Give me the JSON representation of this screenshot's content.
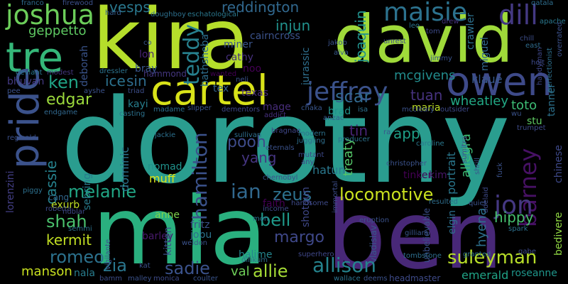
{
  "words": [
    {
      "text": "dorothy",
      "color": "#2a9d8f",
      "rotated": false
    },
    {
      "text": "kira",
      "color": "#b5de2b",
      "rotated": false
    },
    {
      "text": "david",
      "color": "#9fda3a",
      "rotated": false
    },
    {
      "text": "mia",
      "color": "#2ab07f",
      "rotated": false
    },
    {
      "text": "ben",
      "color": "#482878",
      "rotated": false
    },
    {
      "text": "tre",
      "color": "#35b779",
      "rotated": false
    },
    {
      "text": "owen",
      "color": "#3e4a89",
      "rotated": false
    },
    {
      "text": "cartel",
      "color": "#d8e219",
      "rotated": false
    },
    {
      "text": "joshua",
      "color": "#6ccd5a",
      "rotated": false
    },
    {
      "text": "pride",
      "color": "#3b528b",
      "rotated": true
    },
    {
      "text": "maisie",
      "color": "#2c728e",
      "rotated": false
    },
    {
      "text": "dill",
      "color": "#443983",
      "rotated": false
    },
    {
      "text": "jeffrey",
      "color": "#3b528b",
      "rotated": false
    },
    {
      "text": "teddy",
      "color": "#27808e",
      "rotated": true
    },
    {
      "text": "geppetto",
      "color": "#5ec962",
      "rotated": false
    },
    {
      "text": "vesps",
      "color": "#2a788e",
      "rotated": false
    },
    {
      "text": "reddington",
      "color": "#31688e",
      "rotated": false
    },
    {
      "text": "injun",
      "color": "#21918c",
      "rotated": false
    },
    {
      "text": "joaquin",
      "color": "#21918c",
      "rotated": true
    },
    {
      "text": "ken",
      "color": "#20a386",
      "rotated": false
    },
    {
      "text": "edgar",
      "color": "#9bd93c",
      "rotated": false
    },
    {
      "text": "ice",
      "color": "#2c728e",
      "rotated": false
    },
    {
      "text": "sin",
      "color": "#2f6c8e",
      "rotated": false
    },
    {
      "text": "bray",
      "color": "#39568c",
      "rotated": false
    },
    {
      "text": "lon",
      "color": "#482475",
      "rotated": false
    },
    {
      "text": "miner",
      "color": "#3a548c",
      "rotated": false
    },
    {
      "text": "cathy",
      "color": "#46307e",
      "rotated": false
    },
    {
      "text": "noo",
      "color": "#440154",
      "rotated": false
    },
    {
      "text": "scar",
      "color": "#31688e",
      "rotated": false
    },
    {
      "text": "tuan",
      "color": "#46327e",
      "rotated": false
    },
    {
      "text": "mcgivens",
      "color": "#228c8d",
      "rotated": false
    },
    {
      "text": "wheatley",
      "color": "#22a884",
      "rotated": false
    },
    {
      "text": "toto",
      "color": "#3dbc74",
      "rotated": false
    },
    {
      "text": "maria",
      "color": "#bddf26",
      "rotated": false
    },
    {
      "text": "brad",
      "color": "#21918c",
      "rotated": false
    },
    {
      "text": "barney",
      "color": "#471164",
      "rotated": true
    },
    {
      "text": "jon",
      "color": "#453882",
      "rotated": false
    },
    {
      "text": "cassie",
      "color": "#26828e",
      "rotated": true
    },
    {
      "text": "kayi",
      "color": "#277f8e",
      "rotated": false
    },
    {
      "text": "hamilton",
      "color": "#3b528b",
      "rotated": true
    },
    {
      "text": "pooh",
      "color": "#3e4c8a",
      "rotated": false
    },
    {
      "text": "yang",
      "color": "#453581",
      "rotated": false
    },
    {
      "text": "ian",
      "color": "#31688e",
      "rotated": false
    },
    {
      "text": "melanie",
      "color": "#21a685",
      "rotated": false
    },
    {
      "text": "zeus",
      "color": "#2d718e",
      "rotated": false
    },
    {
      "text": "locomotive",
      "color": "#cae11f",
      "rotated": false
    },
    {
      "text": "app",
      "color": "#1fa088",
      "rotated": false
    },
    {
      "text": "tin",
      "color": "#482475",
      "rotated": false
    },
    {
      "text": "hatun",
      "color": "#2a788e",
      "rotated": false
    },
    {
      "text": "nomad",
      "color": "#20928c",
      "rotated": false
    },
    {
      "text": "muff",
      "color": "#dde318",
      "rotated": false
    },
    {
      "text": "dominic",
      "color": "#2c728e",
      "rotated": true
    },
    {
      "text": "shah",
      "color": "#4ac16d",
      "rotated": false
    },
    {
      "text": "kermit",
      "color": "#c2df23",
      "rotated": false
    },
    {
      "text": "romeo",
      "color": "#2c728e",
      "rotated": false
    },
    {
      "text": "margo",
      "color": "#3f4889",
      "rotated": false
    },
    {
      "text": "bell",
      "color": "#1f998a",
      "rotated": false
    },
    {
      "text": "allie",
      "color": "#a5db36",
      "rotated": false
    },
    {
      "text": "allison",
      "color": "#25848e",
      "rotated": false
    },
    {
      "text": "suleyman",
      "color": "#b8de29",
      "rotated": false
    },
    {
      "text": "zia",
      "color": "#2a768e",
      "rotated": false
    },
    {
      "text": "sadie",
      "color": "#3b528b",
      "rotated": false
    },
    {
      "text": "val",
      "color": "#6ece58",
      "rotated": false
    },
    {
      "text": "manson",
      "color": "#c8e020",
      "rotated": false
    },
    {
      "text": "hippy",
      "color": "#46c06f",
      "rotated": false
    },
    {
      "text": "hyena",
      "color": "#2d708e",
      "rotated": true
    },
    {
      "text": "emerald",
      "color": "#20a386",
      "rotated": false
    },
    {
      "text": "allegra",
      "color": "#3dbc74",
      "rotated": true
    },
    {
      "text": "treaty",
      "color": "#54c568",
      "rotated": true
    },
    {
      "text": "bhuvan",
      "color": "#443a83",
      "rotated": false
    },
    {
      "text": "deborah",
      "color": "#3a548c",
      "rotated": true
    },
    {
      "text": "klaue",
      "color": "#38588c",
      "rotated": false
    },
    {
      "text": "miguel",
      "color": "#31688e",
      "rotated": true
    },
    {
      "text": "crawler",
      "color": "#2d708e",
      "rotated": true
    },
    {
      "text": "tanner",
      "color": "#2c728e",
      "rotated": true
    },
    {
      "text": "stu",
      "color": "#5ec962",
      "rotated": false
    },
    {
      "text": "tinker",
      "color": "#440154",
      "rotated": false
    },
    {
      "text": "kim",
      "color": "#481769",
      "rotated": false
    },
    {
      "text": "portrait",
      "color": "#2a788e",
      "rotated": true
    },
    {
      "text": "chinese",
      "color": "#3e4989",
      "rotated": true
    },
    {
      "text": "lorenzini",
      "color": "#433e85",
      "rotated": true
    },
    {
      "text": "exurb",
      "color": "#c0df25",
      "rotated": false
    },
    {
      "text": "barley",
      "color": "#481a6c",
      "rotated": false
    },
    {
      "text": "anne",
      "color": "#7fd34e",
      "rotated": false
    },
    {
      "text": "fritz",
      "color": "#3a538b",
      "rotated": false
    },
    {
      "text": "jobu",
      "color": "#2c738e",
      "rotated": false
    },
    {
      "text": "kitten",
      "color": "#3b518b",
      "rotated": true
    },
    {
      "text": "halime",
      "color": "#24868e",
      "rotated": false
    },
    {
      "text": "faith",
      "color": "#440154",
      "rotated": false
    },
    {
      "text": "shotgun",
      "color": "#3f4889",
      "rotated": true
    },
    {
      "text": "sebring",
      "color": "#287c8e",
      "rotated": true
    },
    {
      "text": "cang",
      "color": "#31688e",
      "rotated": false
    },
    {
      "text": "nala",
      "color": "#287d8e",
      "rotated": false
    },
    {
      "text": "roseanne",
      "color": "#1f968b",
      "rotated": false
    },
    {
      "text": "bedivere",
      "color": "#90d743",
      "rotated": true
    },
    {
      "text": "elgin",
      "color": "#2d708e",
      "rotated": true
    },
    {
      "text": "unbelievable",
      "color": "#3b518b",
      "rotated": true
    },
    {
      "text": "vladislav",
      "color": "#38598c",
      "rotated": true
    },
    {
      "text": "bathsheba",
      "color": "#2e6e8e",
      "rotated": true
    },
    {
      "text": "jurassic",
      "color": "#2e6f8e",
      "rotated": true
    },
    {
      "text": "texas",
      "color": "#472c7a",
      "rotated": false
    },
    {
      "text": "tex",
      "color": "#34618d",
      "rotated": false
    },
    {
      "text": "mage",
      "color": "#472d7b",
      "rotated": false
    },
    {
      "text": "cairncross",
      "color": "#3b528b",
      "rotated": false
    },
    {
      "text": "hammond",
      "color": "#453781",
      "rotated": false
    },
    {
      "text": "dressler",
      "color": "#2c738e",
      "rotated": false
    },
    {
      "text": "franco",
      "color": "#2f6b8e",
      "rotated": false
    },
    {
      "text": "firewood",
      "color": "#3c508b",
      "rotated": false
    },
    {
      "text": "hard",
      "color": "#365d8d",
      "rotated": false
    },
    {
      "text": "doughboy",
      "color": "#2d708e",
      "rotated": false
    },
    {
      "text": "eschatological",
      "color": "#2a788e",
      "rotated": false
    },
    {
      "text": "qatala",
      "color": "#2e6e8e",
      "rotated": false
    },
    {
      "text": "apache",
      "color": "#2a788e",
      "rotated": false
    },
    {
      "text": "chill",
      "color": "#3d4e8a",
      "rotated": false
    },
    {
      "text": "co",
      "color": "#39558c",
      "rotated": false
    },
    {
      "text": "drew",
      "color": "#46337f",
      "rotated": false
    },
    {
      "text": "east",
      "color": "#2f6c8e",
      "rotated": false
    },
    {
      "text": "holt",
      "color": "#3e4a89",
      "rotated": false
    },
    {
      "text": "handyman",
      "color": "#3f4788",
      "rotated": true
    },
    {
      "text": "perfectionist",
      "color": "#2d708e",
      "rotated": true
    },
    {
      "text": "overrated",
      "color": "#3b518b",
      "rotated": true
    },
    {
      "text": "leo",
      "color": "#2b748e",
      "rotated": false
    },
    {
      "text": "tom",
      "color": "#3e4a89",
      "rotated": false
    },
    {
      "text": "jakob",
      "color": "#3b528b",
      "rotated": false
    },
    {
      "text": "unrest",
      "color": "#3e4a89",
      "rotated": false
    },
    {
      "text": "alva",
      "color": "#38598c",
      "rotated": false
    },
    {
      "text": "jimmy",
      "color": "#3a548c",
      "rotated": false
    },
    {
      "text": "wanted",
      "color": "#440154",
      "rotated": false
    },
    {
      "text": "neli",
      "color": "#3b528b",
      "rotated": false
    },
    {
      "text": "modest",
      "color": "#453781",
      "rotated": false
    },
    {
      "text": "deviant",
      "color": "#2a788e",
      "rotated": false
    },
    {
      "text": "pee",
      "color": "#3b528b",
      "rotated": false
    },
    {
      "text": "ayshe",
      "color": "#3b528b",
      "rotated": false
    },
    {
      "text": "triad",
      "color": "#3d4e8a",
      "rotated": false
    },
    {
      "text": "endgame",
      "color": "#31688e",
      "rotated": false
    },
    {
      "text": "casting",
      "color": "#2c728e",
      "rotated": false
    },
    {
      "text": "madame",
      "color": "#2d708e",
      "rotated": false
    },
    {
      "text": "slipper",
      "color": "#3a548c",
      "rotated": false
    },
    {
      "text": "dementors",
      "color": "#3f4889",
      "rotated": false
    },
    {
      "text": "addict",
      "color": "#46307e",
      "rotated": false
    },
    {
      "text": "chaka",
      "color": "#39568c",
      "rotated": false
    },
    {
      "text": "isa",
      "color": "#2e6f8e",
      "rotated": false
    },
    {
      "text": "mccleary",
      "color": "#3b528b",
      "rotated": false
    },
    {
      "text": "anzac",
      "color": "#365c8d",
      "rotated": false
    },
    {
      "text": "outsider",
      "color": "#3e4a89",
      "rotated": false
    },
    {
      "text": "wu",
      "color": "#3b528b",
      "rotated": false
    },
    {
      "text": "trumpet",
      "color": "#3e4a89",
      "rotated": false
    },
    {
      "text": "reginald",
      "color": "#3b518b",
      "rotated": false
    },
    {
      "text": "jackie",
      "color": "#2d708e",
      "rotated": false
    },
    {
      "text": "sullivan",
      "color": "#2e6e8e",
      "rotated": false
    },
    {
      "text": "bragnae",
      "color": "#3f4788",
      "rotated": false
    },
    {
      "text": "modern",
      "color": "#2c728e",
      "rotated": false
    },
    {
      "text": "juggling",
      "color": "#2e6f8e",
      "rotated": false
    },
    {
      "text": "eternals",
      "color": "#3b528b",
      "rotated": false
    },
    {
      "text": "mutant",
      "color": "#3e4989",
      "rotated": false
    },
    {
      "text": "any",
      "color": "#3f4788",
      "rotated": false
    },
    {
      "text": "producer",
      "color": "#2c738e",
      "rotated": false
    },
    {
      "text": "ra",
      "color": "#3a548c",
      "rotated": false
    },
    {
      "text": "caroline",
      "color": "#2a788e",
      "rotated": false
    },
    {
      "text": "christopher",
      "color": "#3b528b",
      "rotated": false
    },
    {
      "text": "sumitra",
      "color": "#3d4e8a",
      "rotated": true
    },
    {
      "text": "shrill",
      "color": "#3a548c",
      "rotated": true
    },
    {
      "text": "fuck",
      "color": "#3b528b",
      "rotated": true
    },
    {
      "text": "piggy",
      "color": "#2d708e",
      "rotated": false
    },
    {
      "text": "roberta",
      "color": "#3e4a89",
      "rotated": false
    },
    {
      "text": "nublar",
      "color": "#3f4889",
      "rotated": false
    },
    {
      "text": "semmi",
      "color": "#2c728e",
      "rotated": false
    },
    {
      "text": "chernobyl",
      "color": "#3b528b",
      "rotated": false
    },
    {
      "text": "handsome",
      "color": "#3e4a89",
      "rotated": false
    },
    {
      "text": "immortal",
      "color": "#3d4e8a",
      "rotated": true
    },
    {
      "text": "resulted",
      "color": "#2e6e8e",
      "rotated": false
    },
    {
      "text": "eruption",
      "color": "#3b528b",
      "rotated": false
    },
    {
      "text": "income",
      "color": "#3f4889",
      "rotated": false
    },
    {
      "text": "mon",
      "color": "#2c728e",
      "rotated": false
    },
    {
      "text": "gilliam",
      "color": "#39568c",
      "rotated": false
    },
    {
      "text": "quiet",
      "color": "#3b528b",
      "rotated": false
    },
    {
      "text": "adelaid",
      "color": "#3e4a89",
      "rotated": true
    },
    {
      "text": "spark",
      "color": "#2d708e",
      "rotated": false
    },
    {
      "text": "vigilante",
      "color": "#3a548c",
      "rotated": true
    },
    {
      "text": "weldon",
      "color": "#3b528b",
      "rotated": false
    },
    {
      "text": "superhero",
      "color": "#3f4788",
      "rotated": false
    },
    {
      "text": "tombstone",
      "color": "#2e6f8e",
      "rotated": false
    },
    {
      "text": "granted",
      "color": "#2c728e",
      "rotated": false
    },
    {
      "text": "gabe",
      "color": "#3e4a89",
      "rotated": false
    },
    {
      "text": "kat",
      "color": "#3b528b",
      "rotated": false
    },
    {
      "text": "dinkum",
      "color": "#2d708e",
      "rotated": false
    },
    {
      "text": "bamm",
      "color": "#3d4e8a",
      "rotated": false
    },
    {
      "text": "malley",
      "color": "#3b528b",
      "rotated": false
    },
    {
      "text": "monica",
      "color": "#3e4a89",
      "rotated": false
    },
    {
      "text": "coulter",
      "color": "#3a548c",
      "rotated": false
    },
    {
      "text": "wallace",
      "color": "#2c728e",
      "rotated": false
    },
    {
      "text": "deems",
      "color": "#3b528b",
      "rotated": false
    },
    {
      "text": "headmaster",
      "color": "#3e4a89",
      "rotated": false
    }
  ]
}
